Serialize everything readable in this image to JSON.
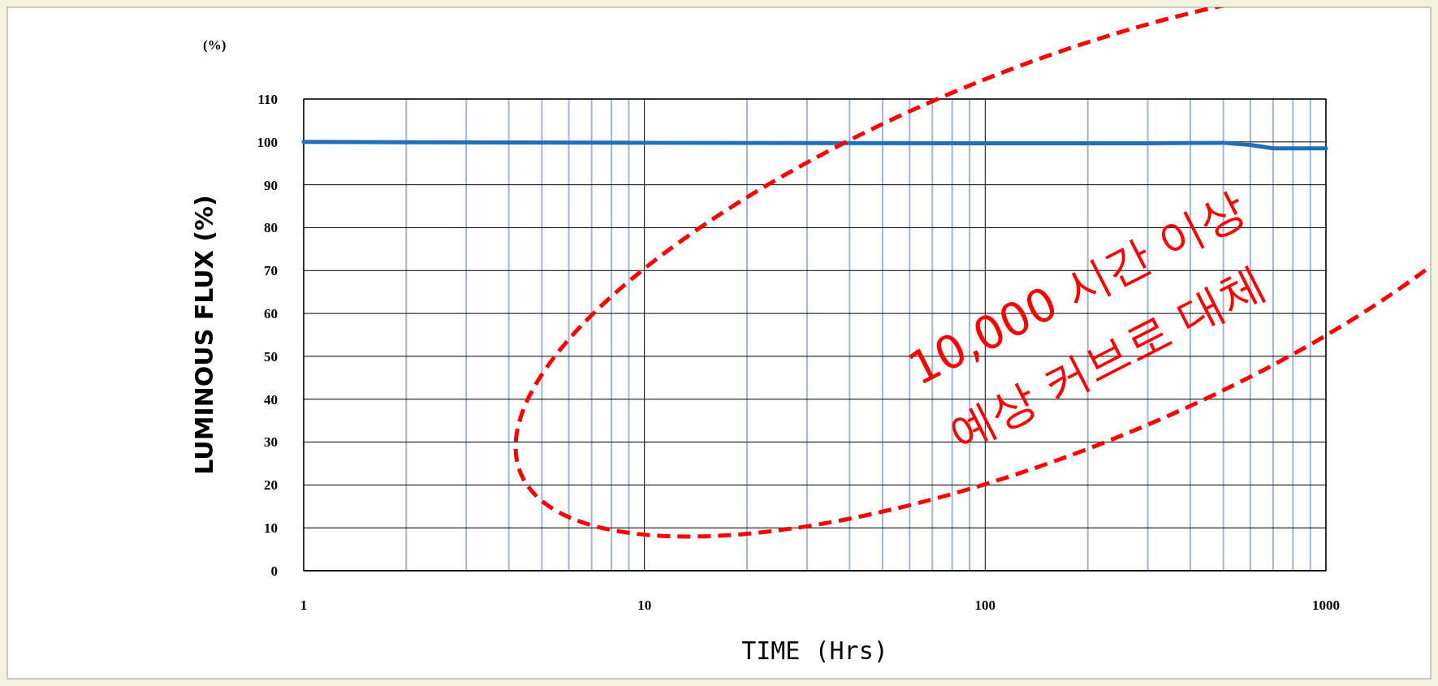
{
  "chart_data": {
    "type": "line",
    "xlabel": "TIME (Hrs)",
    "ylabel": "LUMINOUS FLUX (%)",
    "annotations": [
      "(%)",
      "10,000 시간 이상",
      "예상 커브로 대체"
    ],
    "x": [
      1,
      10,
      100,
      300,
      500,
      600,
      700,
      1000
    ],
    "series": [
      {
        "color": "#1f70b8",
        "values": [
          100,
          99.8,
          99.7,
          99.7,
          99.8,
          99.3,
          98.5,
          98.5
        ]
      }
    ],
    "log": "x",
    "xlim": [
      1,
      1000
    ],
    "ylim": [
      0,
      110
    ],
    "xticks": [
      1,
      {
        "value": 2,
        "label": null
      },
      {
        "value": 3,
        "label": null
      },
      {
        "value": 4,
        "label": null
      },
      {
        "value": 5,
        "label": null
      },
      {
        "value": 6,
        "label": null
      },
      {
        "value": 7,
        "label": null
      },
      {
        "value": 8,
        "label": null
      },
      {
        "value": 9,
        "label": null
      },
      10,
      {
        "value": 20,
        "label": null
      },
      {
        "value": 30,
        "label": null
      },
      {
        "value": 40,
        "label": null
      },
      {
        "value": 50,
        "label": null
      },
      {
        "value": 60,
        "label": null
      },
      {
        "value": 70,
        "label": null
      },
      {
        "value": 80,
        "label": null
      },
      {
        "value": 90,
        "label": null
      },
      100,
      {
        "value": 200,
        "label": null
      },
      {
        "value": 300,
        "label": null
      },
      {
        "value": 400,
        "label": null
      },
      {
        "value": 500,
        "label": null
      },
      {
        "value": 600,
        "label": null
      },
      {
        "value": 700,
        "label": null
      },
      {
        "value": 800,
        "label": null
      },
      {
        "value": 900,
        "label": null
      },
      1000
    ],
    "yticks": [
      0,
      10,
      20,
      30,
      40,
      50,
      60,
      70,
      80,
      90,
      100,
      110
    ],
    "grid": true,
    "marker": "none",
    "line_style": "solid"
  }
}
